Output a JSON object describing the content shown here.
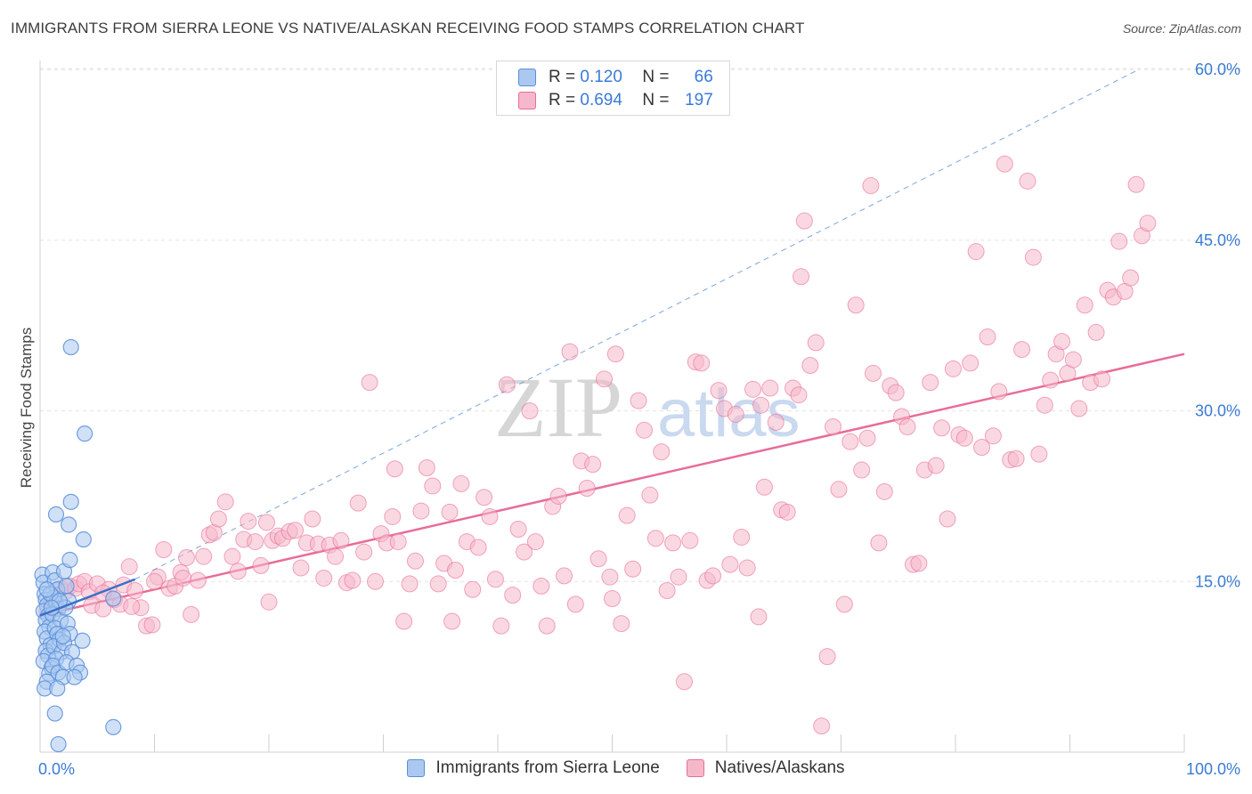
{
  "header": {
    "title": "IMMIGRANTS FROM SIERRA LEONE VS NATIVE/ALASKAN RECEIVING FOOD STAMPS CORRELATION CHART",
    "source": "Source: ZipAtlas.com"
  },
  "watermark": {
    "part1": "ZIP",
    "part2": "atlas"
  },
  "legend": {
    "r_label": "R =",
    "n_label": "N =",
    "series": [
      {
        "r": "0.120",
        "n": "66"
      },
      {
        "r": "0.694",
        "n": "197"
      }
    ]
  },
  "chart_data": {
    "type": "scatter",
    "title": "IMMIGRANTS FROM SIERRA LEONE VS NATIVE/ALASKAN RECEIVING FOOD STAMPS CORRELATION CHART",
    "xlabel": "",
    "ylabel": "Receiving Food Stamps",
    "xlim": [
      0,
      100
    ],
    "ylim": [
      0,
      63
    ],
    "x_tick_labels": [
      "0.0%",
      "100.0%"
    ],
    "y_ticks": [
      15,
      30,
      45,
      60
    ],
    "y_tick_labels": [
      "15.0%",
      "30.0%",
      "45.0%",
      "60.0%"
    ],
    "colors": {
      "blue": "#5b8fd9",
      "blue_fill": "#aac8f0",
      "pink": "#e86c98",
      "pink_fill": "#f5b8cb",
      "tick_text": "#3a7bd5"
    },
    "series": [
      {
        "name": "Immigrants from Sierra Leone",
        "r": 0.12,
        "n": 66,
        "trend": {
          "x": [
            0,
            8.3
          ],
          "y": [
            12.0,
            15.2
          ]
        },
        "diagonal": {
          "x": [
            8.3,
            96
          ],
          "y": [
            15.2,
            60
          ]
        },
        "points": [
          [
            0.2,
            15.6
          ],
          [
            0.3,
            14.9
          ],
          [
            0.4,
            13.9
          ],
          [
            0.5,
            13.4
          ],
          [
            0.6,
            12.9
          ],
          [
            0.3,
            12.4
          ],
          [
            0.7,
            12.0
          ],
          [
            0.5,
            11.6
          ],
          [
            0.8,
            11.0
          ],
          [
            0.4,
            10.6
          ],
          [
            0.6,
            10.0
          ],
          [
            0.9,
            9.4
          ],
          [
            0.5,
            8.9
          ],
          [
            0.7,
            8.5
          ],
          [
            0.3,
            8.0
          ],
          [
            1.0,
            7.4
          ],
          [
            0.8,
            6.9
          ],
          [
            0.6,
            6.2
          ],
          [
            0.4,
            5.6
          ],
          [
            1.1,
            15.8
          ],
          [
            1.3,
            15.1
          ],
          [
            1.5,
            14.3
          ],
          [
            1.2,
            13.6
          ],
          [
            1.4,
            13.1
          ],
          [
            1.6,
            12.6
          ],
          [
            1.1,
            12.1
          ],
          [
            1.8,
            11.6
          ],
          [
            1.3,
            10.9
          ],
          [
            1.5,
            10.4
          ],
          [
            1.7,
            9.9
          ],
          [
            1.2,
            9.3
          ],
          [
            1.9,
            8.8
          ],
          [
            1.4,
            8.2
          ],
          [
            1.1,
            7.6
          ],
          [
            1.6,
            7.0
          ],
          [
            2.0,
            6.6
          ],
          [
            1.5,
            5.6
          ],
          [
            1.3,
            3.4
          ],
          [
            1.6,
            0.7
          ],
          [
            2.1,
            15.9
          ],
          [
            2.3,
            14.6
          ],
          [
            2.5,
            13.3
          ],
          [
            2.2,
            12.7
          ],
          [
            2.4,
            11.3
          ],
          [
            2.6,
            10.4
          ],
          [
            2.1,
            9.6
          ],
          [
            2.8,
            8.8
          ],
          [
            2.3,
            7.9
          ],
          [
            3.2,
            7.6
          ],
          [
            3.5,
            7.0
          ],
          [
            2.6,
            16.9
          ],
          [
            2.5,
            20.0
          ],
          [
            1.4,
            20.9
          ],
          [
            2.7,
            22.0
          ],
          [
            2.7,
            35.6
          ],
          [
            3.9,
            28.0
          ],
          [
            3.8,
            18.7
          ],
          [
            3.7,
            9.8
          ],
          [
            6.4,
            13.5
          ],
          [
            3.0,
            6.6
          ],
          [
            6.4,
            2.2
          ],
          [
            0.9,
            13.9
          ],
          [
            1.7,
            13.3
          ],
          [
            2.0,
            10.2
          ],
          [
            0.6,
            14.3
          ],
          [
            1.0,
            12.7
          ]
        ]
      },
      {
        "name": "Natives/Alaskans",
        "r": 0.694,
        "n": 197,
        "trend": {
          "x": [
            0,
            100
          ],
          "y": [
            12.0,
            35.0
          ]
        },
        "points": [
          [
            0.6,
            12.3
          ],
          [
            1.0,
            13.2
          ],
          [
            1.4,
            12.7
          ],
          [
            1.8,
            14.4
          ],
          [
            2.2,
            14.1
          ],
          [
            2.6,
            14.6
          ],
          [
            3.1,
            14.4
          ],
          [
            3.4,
            14.8
          ],
          [
            3.9,
            15.0
          ],
          [
            4.3,
            14.1
          ],
          [
            4.5,
            12.9
          ],
          [
            5.0,
            14.8
          ],
          [
            5.5,
            12.6
          ],
          [
            6.0,
            14.3
          ],
          [
            6.5,
            13.4
          ],
          [
            7.0,
            13.0
          ],
          [
            7.3,
            14.7
          ],
          [
            7.8,
            16.3
          ],
          [
            8.3,
            14.2
          ],
          [
            8.8,
            12.7
          ],
          [
            9.3,
            11.1
          ],
          [
            9.8,
            11.2
          ],
          [
            10.3,
            15.4
          ],
          [
            10.8,
            17.8
          ],
          [
            11.3,
            14.4
          ],
          [
            11.8,
            14.6
          ],
          [
            12.3,
            15.8
          ],
          [
            12.8,
            17.1
          ],
          [
            13.2,
            12.1
          ],
          [
            13.8,
            15.1
          ],
          [
            14.3,
            17.2
          ],
          [
            14.8,
            19.1
          ],
          [
            15.2,
            19.3
          ],
          [
            15.6,
            20.5
          ],
          [
            16.2,
            22.0
          ],
          [
            16.8,
            17.2
          ],
          [
            17.3,
            15.9
          ],
          [
            17.8,
            18.7
          ],
          [
            18.2,
            20.3
          ],
          [
            18.8,
            18.5
          ],
          [
            19.3,
            16.4
          ],
          [
            19.8,
            20.2
          ],
          [
            20.3,
            18.6
          ],
          [
            20.8,
            19.0
          ],
          [
            21.2,
            18.8
          ],
          [
            21.8,
            19.4
          ],
          [
            22.3,
            19.5
          ],
          [
            22.8,
            16.2
          ],
          [
            23.3,
            18.4
          ],
          [
            23.8,
            20.5
          ],
          [
            24.3,
            18.3
          ],
          [
            24.8,
            15.3
          ],
          [
            25.3,
            18.2
          ],
          [
            25.8,
            17.2
          ],
          [
            26.3,
            18.6
          ],
          [
            26.8,
            14.9
          ],
          [
            27.3,
            15.1
          ],
          [
            27.8,
            21.9
          ],
          [
            28.3,
            17.6
          ],
          [
            28.8,
            32.5
          ],
          [
            29.3,
            15.0
          ],
          [
            29.8,
            19.2
          ],
          [
            30.3,
            18.4
          ],
          [
            30.8,
            20.7
          ],
          [
            31.3,
            18.5
          ],
          [
            31.8,
            11.5
          ],
          [
            32.3,
            14.8
          ],
          [
            32.8,
            16.8
          ],
          [
            33.3,
            21.2
          ],
          [
            33.8,
            25.0
          ],
          [
            34.3,
            23.4
          ],
          [
            34.8,
            14.8
          ],
          [
            35.3,
            16.6
          ],
          [
            35.8,
            21.1
          ],
          [
            36.3,
            16.0
          ],
          [
            36.8,
            23.6
          ],
          [
            37.3,
            18.5
          ],
          [
            37.8,
            14.3
          ],
          [
            38.3,
            18.0
          ],
          [
            38.8,
            22.4
          ],
          [
            39.3,
            20.7
          ],
          [
            39.8,
            15.2
          ],
          [
            40.3,
            11.1
          ],
          [
            40.8,
            32.3
          ],
          [
            41.3,
            13.8
          ],
          [
            41.8,
            19.6
          ],
          [
            42.3,
            17.6
          ],
          [
            42.8,
            30.0
          ],
          [
            43.3,
            18.5
          ],
          [
            43.8,
            14.6
          ],
          [
            44.3,
            11.1
          ],
          [
            44.8,
            21.6
          ],
          [
            45.3,
            22.5
          ],
          [
            45.8,
            15.5
          ],
          [
            46.3,
            35.2
          ],
          [
            46.8,
            13.0
          ],
          [
            47.3,
            25.6
          ],
          [
            47.8,
            23.2
          ],
          [
            48.3,
            25.3
          ],
          [
            48.8,
            17.0
          ],
          [
            49.3,
            32.8
          ],
          [
            49.8,
            15.4
          ],
          [
            50.3,
            35.0
          ],
          [
            50.8,
            11.3
          ],
          [
            51.3,
            20.8
          ],
          [
            51.8,
            16.1
          ],
          [
            52.3,
            30.9
          ],
          [
            52.8,
            28.3
          ],
          [
            53.3,
            22.6
          ],
          [
            53.8,
            18.8
          ],
          [
            54.3,
            26.4
          ],
          [
            54.8,
            14.2
          ],
          [
            55.3,
            18.4
          ],
          [
            55.8,
            15.4
          ],
          [
            56.3,
            6.2
          ],
          [
            56.8,
            18.6
          ],
          [
            57.3,
            34.3
          ],
          [
            57.8,
            34.2
          ],
          [
            58.3,
            15.1
          ],
          [
            58.8,
            15.5
          ],
          [
            59.3,
            31.8
          ],
          [
            59.8,
            30.2
          ],
          [
            60.3,
            16.5
          ],
          [
            60.8,
            29.7
          ],
          [
            61.3,
            18.9
          ],
          [
            61.8,
            16.2
          ],
          [
            62.3,
            31.9
          ],
          [
            62.8,
            11.9
          ],
          [
            63.3,
            23.3
          ],
          [
            63.8,
            32.0
          ],
          [
            64.3,
            29.0
          ],
          [
            64.8,
            21.3
          ],
          [
            65.3,
            21.1
          ],
          [
            65.8,
            32.0
          ],
          [
            66.3,
            31.4
          ],
          [
            66.8,
            46.7
          ],
          [
            67.3,
            34.0
          ],
          [
            67.8,
            36.0
          ],
          [
            68.3,
            2.3
          ],
          [
            68.8,
            8.4
          ],
          [
            69.3,
            28.6
          ],
          [
            69.8,
            23.1
          ],
          [
            70.3,
            13.0
          ],
          [
            70.8,
            27.3
          ],
          [
            71.3,
            39.3
          ],
          [
            71.8,
            24.8
          ],
          [
            72.3,
            27.6
          ],
          [
            72.8,
            33.3
          ],
          [
            73.3,
            18.4
          ],
          [
            73.8,
            22.9
          ],
          [
            74.3,
            32.2
          ],
          [
            74.8,
            31.6
          ],
          [
            75.3,
            29.5
          ],
          [
            75.8,
            28.6
          ],
          [
            76.3,
            16.5
          ],
          [
            76.8,
            16.6
          ],
          [
            77.3,
            24.8
          ],
          [
            77.8,
            32.5
          ],
          [
            78.3,
            25.2
          ],
          [
            78.8,
            28.5
          ],
          [
            79.3,
            20.5
          ],
          [
            79.8,
            33.7
          ],
          [
            80.3,
            27.9
          ],
          [
            80.8,
            27.6
          ],
          [
            81.3,
            34.2
          ],
          [
            81.8,
            44.0
          ],
          [
            82.3,
            26.8
          ],
          [
            82.8,
            36.5
          ],
          [
            83.3,
            27.8
          ],
          [
            83.8,
            31.7
          ],
          [
            84.3,
            51.7
          ],
          [
            84.8,
            25.7
          ],
          [
            85.3,
            25.8
          ],
          [
            85.8,
            35.4
          ],
          [
            86.3,
            50.2
          ],
          [
            86.8,
            43.5
          ],
          [
            87.3,
            26.2
          ],
          [
            87.8,
            30.5
          ],
          [
            88.3,
            32.7
          ],
          [
            88.8,
            35.0
          ],
          [
            89.3,
            36.1
          ],
          [
            89.8,
            33.3
          ],
          [
            90.3,
            34.5
          ],
          [
            90.8,
            30.2
          ],
          [
            91.3,
            39.3
          ],
          [
            91.8,
            32.5
          ],
          [
            92.3,
            36.9
          ],
          [
            92.8,
            32.8
          ],
          [
            93.3,
            40.6
          ],
          [
            93.8,
            40.0
          ],
          [
            94.3,
            44.9
          ],
          [
            94.8,
            40.5
          ],
          [
            95.3,
            41.7
          ],
          [
            95.8,
            49.9
          ],
          [
            96.3,
            45.4
          ],
          [
            96.8,
            46.5
          ],
          [
            72.6,
            49.8
          ],
          [
            66.5,
            41.8
          ],
          [
            63.0,
            30.5
          ],
          [
            50.0,
            13.5
          ],
          [
            36.0,
            11.5
          ],
          [
            20.0,
            13.2
          ],
          [
            10.0,
            15.0
          ],
          [
            5.5,
            14.0
          ],
          [
            8.0,
            12.8
          ],
          [
            12.5,
            15.3
          ],
          [
            31.0,
            24.9
          ]
        ]
      }
    ]
  },
  "bottom_legend": {
    "items": [
      {
        "label": "Immigrants from Sierra Leone"
      },
      {
        "label": "Natives/Alaskans"
      }
    ]
  }
}
